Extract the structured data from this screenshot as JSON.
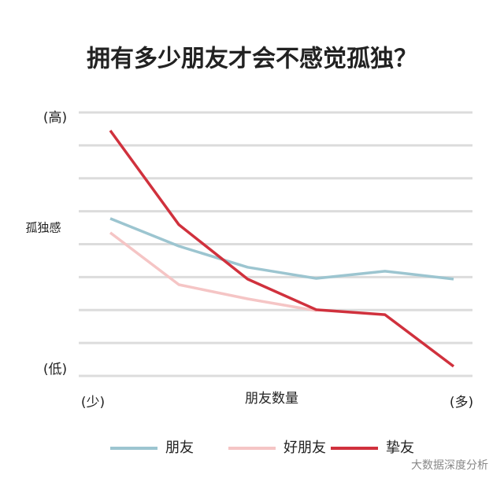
{
  "chart_data": {
    "type": "line",
    "title": "拥有多少朋友才会不感觉孤独？",
    "x_label": "朋友数量",
    "y_label": "孤独感",
    "y_high_label": "(高)",
    "y_low_label": "(低)",
    "x_low_label": "(少)",
    "x_high_label": "(多)",
    "watermark": "大数据深度分析",
    "categories": [
      null,
      null,
      null,
      null,
      null,
      null
    ],
    "series": [
      {
        "name": "朋友",
        "color": "#9cc5d0",
        "values": [
          4.78,
          3.94,
          3.3,
          2.96,
          3.18,
          2.94
        ]
      },
      {
        "name": "好朋友",
        "color": "#f5c5c5",
        "values": [
          4.35,
          2.77,
          2.34,
          1.98,
          null,
          null
        ]
      },
      {
        "name": "挚友",
        "color": "#d0313d",
        "values": [
          7.45,
          4.59,
          2.94,
          2.01,
          1.86,
          0.29
        ]
      }
    ],
    "ylim": [
      0,
      8
    ],
    "yticks": [
      0,
      1,
      2,
      3,
      4,
      5,
      6,
      7,
      8
    ],
    "grid": true,
    "legend": "bottom"
  }
}
